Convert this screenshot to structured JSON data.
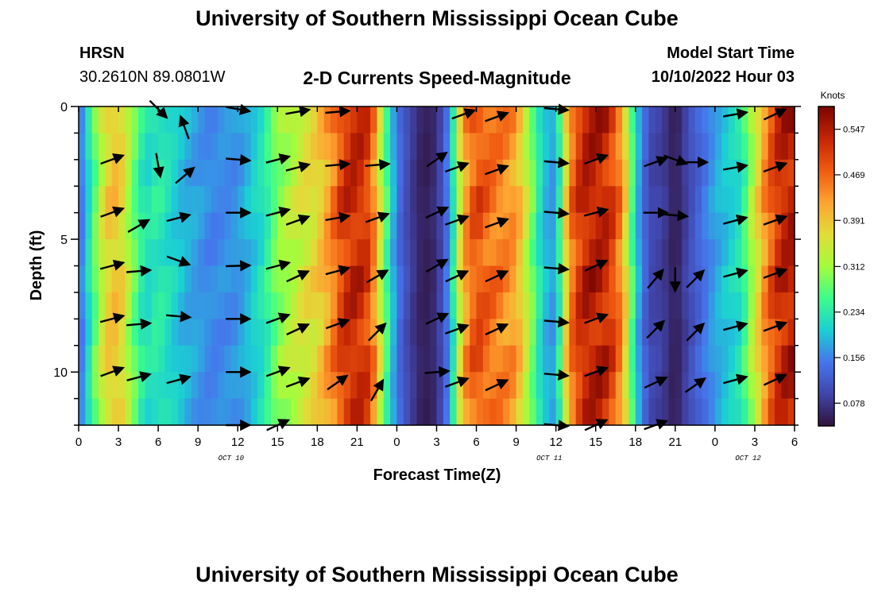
{
  "header": {
    "title": "University of Southern Mississippi Ocean Cube",
    "station": "HRSN",
    "coords": "30.2610N  89.0801W",
    "subtitle": "2-D Currents Speed-Magnitude",
    "start_label": "Model Start Time",
    "start_value": "10/10/2022 Hour 03"
  },
  "footer": {
    "title": "University of Southern Mississippi Ocean Cube"
  },
  "chart_data": {
    "type": "heatmap",
    "title": "2-D Currents Speed-Magnitude",
    "xlabel": "Forecast Time(Z)",
    "ylabel": "Depth (ft)",
    "x_range_hours": [
      0,
      54
    ],
    "y_range_ft": [
      0,
      12
    ],
    "x_tick_labels": [
      "0",
      "3",
      "6",
      "9",
      "12",
      "15",
      "18",
      "21",
      "0",
      "3",
      "6",
      "9",
      "12",
      "15",
      "18",
      "21",
      "0",
      "3",
      "6"
    ],
    "y_tick_labels": [
      "0",
      "5",
      "10"
    ],
    "y_tick_values": [
      0,
      5,
      10
    ],
    "date_labels": [
      {
        "text": "OCT 10",
        "hour": 11.5
      },
      {
        "text": "OCT 11",
        "hour": 35.5
      },
      {
        "text": "OCT 12",
        "hour": 50.5
      }
    ],
    "colorbar": {
      "label": "Knots",
      "min": 0.039,
      "max": 0.586,
      "tick_labels": [
        "0.547",
        "0.469",
        "0.391",
        "0.312",
        "0.234",
        "0.156",
        "0.078"
      ],
      "tick_values": [
        0.547,
        0.469,
        0.391,
        0.312,
        0.234,
        0.156,
        0.078
      ]
    },
    "speed_profile_knots": {
      "hours": [
        0,
        1,
        2,
        3,
        4,
        5,
        6,
        8,
        10,
        12,
        14,
        15,
        16,
        17,
        18,
        19,
        20,
        21,
        22,
        23,
        24,
        25,
        26,
        27,
        28,
        29,
        30,
        31,
        33,
        35,
        36,
        37,
        38,
        39,
        40,
        41,
        42,
        43,
        44,
        45,
        46,
        48,
        50,
        51,
        52,
        53,
        54
      ],
      "values": [
        0.13,
        0.25,
        0.38,
        0.4,
        0.3,
        0.22,
        0.24,
        0.19,
        0.16,
        0.17,
        0.23,
        0.3,
        0.33,
        0.36,
        0.38,
        0.44,
        0.52,
        0.54,
        0.5,
        0.3,
        0.15,
        0.09,
        0.05,
        0.07,
        0.17,
        0.42,
        0.5,
        0.47,
        0.43,
        0.2,
        0.17,
        0.45,
        0.54,
        0.55,
        0.53,
        0.44,
        0.21,
        0.1,
        0.09,
        0.05,
        0.1,
        0.18,
        0.23,
        0.35,
        0.47,
        0.54,
        0.55
      ]
    },
    "vectors": [
      {
        "hour": 2.5,
        "depth": 2,
        "dir": -20
      },
      {
        "hour": 2.5,
        "depth": 4,
        "dir": -20
      },
      {
        "hour": 2.5,
        "depth": 6,
        "dir": -15
      },
      {
        "hour": 2.5,
        "depth": 8,
        "dir": -15
      },
      {
        "hour": 2.5,
        "depth": 10,
        "dir": -20
      },
      {
        "hour": 4.5,
        "depth": 4.5,
        "dir": -30
      },
      {
        "hour": 4.5,
        "depth": 6.2,
        "dir": -5
      },
      {
        "hour": 4.5,
        "depth": 8.2,
        "dir": -5
      },
      {
        "hour": 4.5,
        "depth": 10.2,
        "dir": -15
      },
      {
        "hour": 6.0,
        "depth": 2.2,
        "dir": 80
      },
      {
        "hour": 6.0,
        "depth": 0.1,
        "dir": 45
      },
      {
        "hour": 8.0,
        "depth": 0.8,
        "dir": -110
      },
      {
        "hour": 8.0,
        "depth": 2.6,
        "dir": -40
      },
      {
        "hour": 7.5,
        "depth": 4.2,
        "dir": -15
      },
      {
        "hour": 7.5,
        "depth": 5.8,
        "dir": 20
      },
      {
        "hour": 7.5,
        "depth": 7.9,
        "dir": 5
      },
      {
        "hour": 7.5,
        "depth": 10.3,
        "dir": -15
      },
      {
        "hour": 12.0,
        "depth": 2.0,
        "dir": 5
      },
      {
        "hour": 12.0,
        "depth": 4.0,
        "dir": 0
      },
      {
        "hour": 12.0,
        "depth": 6.0,
        "dir": -2
      },
      {
        "hour": 12.0,
        "depth": 8.0,
        "dir": 0
      },
      {
        "hour": 12.0,
        "depth": 10.0,
        "dir": 0
      },
      {
        "hour": 12.0,
        "depth": 12.0,
        "dir": 0
      },
      {
        "hour": 12.0,
        "depth": 0.1,
        "dir": 10
      },
      {
        "hour": 15.0,
        "depth": 2.0,
        "dir": -15
      },
      {
        "hour": 15.0,
        "depth": 4.0,
        "dir": -15
      },
      {
        "hour": 15.0,
        "depth": 6.0,
        "dir": -15
      },
      {
        "hour": 15.0,
        "depth": 8.0,
        "dir": -20
      },
      {
        "hour": 15.0,
        "depth": 10.0,
        "dir": -20
      },
      {
        "hour": 15.0,
        "depth": 12.0,
        "dir": -25
      },
      {
        "hour": 16.5,
        "depth": 2.3,
        "dir": -15
      },
      {
        "hour": 16.5,
        "depth": 4.3,
        "dir": -20
      },
      {
        "hour": 16.5,
        "depth": 6.4,
        "dir": -25
      },
      {
        "hour": 16.5,
        "depth": 8.4,
        "dir": -25
      },
      {
        "hour": 16.5,
        "depth": 10.4,
        "dir": -20
      },
      {
        "hour": 16.5,
        "depth": 0.2,
        "dir": -10
      },
      {
        "hour": 19.5,
        "depth": 0.2,
        "dir": -5
      },
      {
        "hour": 19.5,
        "depth": 2.2,
        "dir": -5
      },
      {
        "hour": 19.5,
        "depth": 4.2,
        "dir": -10
      },
      {
        "hour": 19.5,
        "depth": 6.2,
        "dir": -15
      },
      {
        "hour": 19.5,
        "depth": 8.2,
        "dir": -20
      },
      {
        "hour": 19.5,
        "depth": 10.4,
        "dir": -35
      },
      {
        "hour": 22.5,
        "depth": 2.2,
        "dir": -5
      },
      {
        "hour": 22.5,
        "depth": 4.2,
        "dir": -20
      },
      {
        "hour": 22.5,
        "depth": 6.4,
        "dir": -30
      },
      {
        "hour": 22.5,
        "depth": 8.5,
        "dir": -45
      },
      {
        "hour": 22.5,
        "depth": 10.7,
        "dir": -60
      },
      {
        "hour": 27.0,
        "depth": 2.0,
        "dir": -35
      },
      {
        "hour": 27.0,
        "depth": 4.0,
        "dir": -25
      },
      {
        "hour": 27.0,
        "depth": 6.0,
        "dir": -30
      },
      {
        "hour": 27.0,
        "depth": 8.0,
        "dir": -25
      },
      {
        "hour": 27.0,
        "depth": 10.0,
        "dir": -5
      },
      {
        "hour": 28.5,
        "depth": 2.3,
        "dir": -20
      },
      {
        "hour": 28.5,
        "depth": 4.3,
        "dir": -20
      },
      {
        "hour": 28.5,
        "depth": 6.4,
        "dir": -25
      },
      {
        "hour": 28.5,
        "depth": 8.4,
        "dir": -20
      },
      {
        "hour": 28.5,
        "depth": 10.4,
        "dir": -20
      },
      {
        "hour": 29.0,
        "depth": 0.3,
        "dir": -20
      },
      {
        "hour": 31.5,
        "depth": 0.4,
        "dir": -20
      },
      {
        "hour": 31.5,
        "depth": 2.4,
        "dir": -20
      },
      {
        "hour": 31.5,
        "depth": 4.4,
        "dir": -20
      },
      {
        "hour": 31.5,
        "depth": 6.4,
        "dir": -25
      },
      {
        "hour": 31.5,
        "depth": 8.4,
        "dir": -25
      },
      {
        "hour": 31.5,
        "depth": 10.5,
        "dir": -25
      },
      {
        "hour": 36.0,
        "depth": 0.1,
        "dir": 5
      },
      {
        "hour": 36.0,
        "depth": 2.1,
        "dir": 5
      },
      {
        "hour": 36.0,
        "depth": 4.0,
        "dir": 5
      },
      {
        "hour": 36.0,
        "depth": 6.1,
        "dir": 5
      },
      {
        "hour": 36.0,
        "depth": 8.1,
        "dir": 5
      },
      {
        "hour": 36.0,
        "depth": 10.1,
        "dir": 5
      },
      {
        "hour": 36.0,
        "depth": 12.0,
        "dir": 5
      },
      {
        "hour": 39.0,
        "depth": 2.0,
        "dir": -20
      },
      {
        "hour": 39.0,
        "depth": 4.0,
        "dir": -15
      },
      {
        "hour": 39.0,
        "depth": 6.0,
        "dir": -25
      },
      {
        "hour": 39.0,
        "depth": 8.0,
        "dir": -20
      },
      {
        "hour": 39.0,
        "depth": 10.0,
        "dir": -20
      },
      {
        "hour": 39.0,
        "depth": 12.0,
        "dir": -25
      },
      {
        "hour": 43.5,
        "depth": 2.1,
        "dir": -20
      },
      {
        "hour": 43.5,
        "depth": 4.0,
        "dir": 0
      },
      {
        "hour": 43.5,
        "depth": 6.5,
        "dir": -50
      },
      {
        "hour": 43.5,
        "depth": 8.4,
        "dir": -45
      },
      {
        "hour": 43.5,
        "depth": 10.4,
        "dir": -25
      },
      {
        "hour": 43.5,
        "depth": 12.0,
        "dir": -20
      },
      {
        "hour": 45.0,
        "depth": 2.0,
        "dir": 20
      },
      {
        "hour": 45.0,
        "depth": 4.1,
        "dir": 5
      },
      {
        "hour": 45.0,
        "depth": 6.5,
        "dir": 90
      },
      {
        "hour": 46.5,
        "depth": 2.1,
        "dir": 0
      },
      {
        "hour": 46.5,
        "depth": 6.5,
        "dir": -45
      },
      {
        "hour": 46.5,
        "depth": 8.5,
        "dir": -45
      },
      {
        "hour": 46.5,
        "depth": 10.5,
        "dir": -35
      },
      {
        "hour": 49.5,
        "depth": 0.3,
        "dir": -10
      },
      {
        "hour": 49.5,
        "depth": 2.3,
        "dir": -10
      },
      {
        "hour": 49.5,
        "depth": 4.3,
        "dir": -15
      },
      {
        "hour": 49.5,
        "depth": 6.3,
        "dir": -15
      },
      {
        "hour": 49.5,
        "depth": 8.3,
        "dir": -15
      },
      {
        "hour": 49.5,
        "depth": 10.3,
        "dir": -15
      },
      {
        "hour": 52.5,
        "depth": 0.3,
        "dir": -25
      },
      {
        "hour": 52.5,
        "depth": 2.3,
        "dir": -20
      },
      {
        "hour": 52.5,
        "depth": 4.3,
        "dir": -20
      },
      {
        "hour": 52.5,
        "depth": 6.3,
        "dir": -20
      },
      {
        "hour": 52.5,
        "depth": 8.3,
        "dir": -20
      },
      {
        "hour": 52.5,
        "depth": 10.3,
        "dir": -25
      }
    ]
  }
}
